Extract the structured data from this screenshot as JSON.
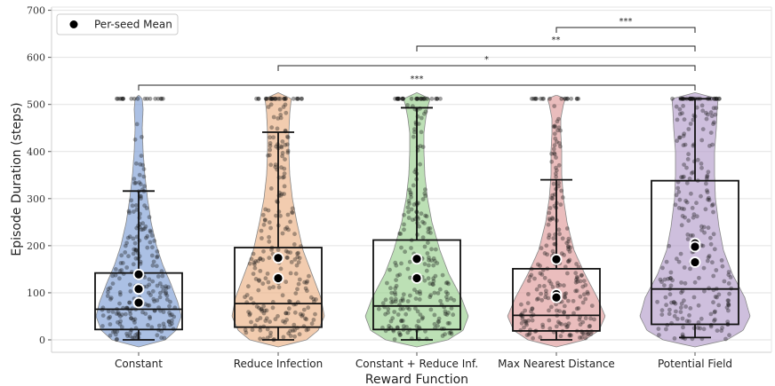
{
  "chart_data": {
    "type": "violin",
    "xlabel": "Reward Function",
    "ylabel": "Episode Duration (steps)",
    "ylim": [
      0,
      700
    ],
    "yticks": [
      0,
      100,
      200,
      300,
      400,
      500,
      600,
      700
    ],
    "grid": "horizontal",
    "legend": {
      "placement": "top-left",
      "entries": [
        "Per-seed Mean"
      ]
    },
    "categories": [
      "Constant",
      "Reduce Infection",
      "Constant + Reduce Inf.",
      "Max Nearest Distance",
      "Potential Field"
    ],
    "colors": [
      "#7e9ed6",
      "#ebb184",
      "#98d08e",
      "#de9a9a",
      "#b39dcb"
    ],
    "max_value": 512,
    "box": [
      {
        "q1": 22,
        "median": 65,
        "q3": 142,
        "whisker_low": 0,
        "whisker_high": 316
      },
      {
        "q1": 27,
        "median": 77,
        "q3": 196,
        "whisker_low": 0,
        "whisker_high": 441
      },
      {
        "q1": 22,
        "median": 72,
        "q3": 212,
        "whisker_low": 0,
        "whisker_high": 493
      },
      {
        "q1": 19,
        "median": 52,
        "q3": 151,
        "whisker_low": 0,
        "whisker_high": 340
      },
      {
        "q1": 33,
        "median": 108,
        "q3": 338,
        "whisker_low": 5,
        "whisker_high": 512
      }
    ],
    "seed_means": [
      [
        139,
        108,
        79
      ],
      [
        174,
        131
      ],
      [
        172,
        131
      ],
      [
        171,
        97,
        90
      ],
      [
        205,
        198,
        165
      ]
    ],
    "significance": [
      {
        "from": 0,
        "to": 4,
        "label": "***"
      },
      {
        "from": 1,
        "to": 4,
        "label": "*"
      },
      {
        "from": 2,
        "to": 4,
        "label": "**"
      },
      {
        "from": 3,
        "to": 4,
        "label": "***"
      }
    ]
  }
}
